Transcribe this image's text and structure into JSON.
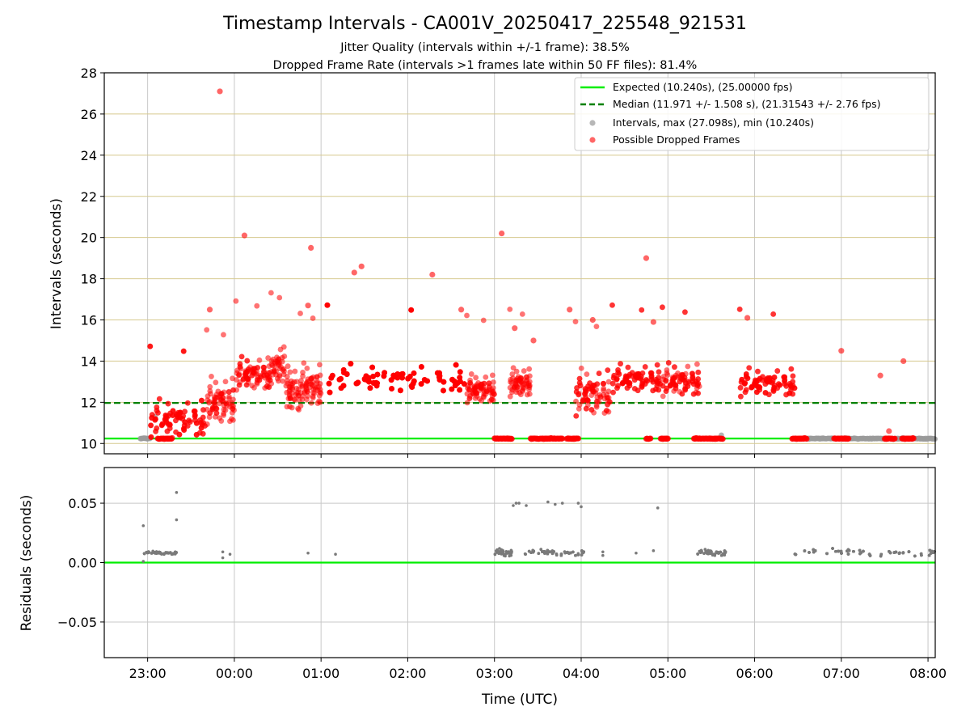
{
  "colors": {
    "expected": "#00ee00",
    "median": "#008000",
    "intervals": "#999999",
    "dropped": "#ff0000",
    "residuals": "#7a7a7a",
    "hgrid_top": "#d6c98f",
    "vgrid": "#c8c8c8"
  },
  "chart_data": [
    {
      "type": "scatter",
      "title": "Timestamp Intervals - CA001V_20250417_225548_921531",
      "subtitle_1": "Jitter Quality (intervals within +/-1 frame): 38.5%",
      "subtitle_2": "Dropped Frame Rate (intervals >1 frames late within 50 FF files): 81.4%",
      "xlabel": "",
      "ylabel": "Intervals (seconds)",
      "xlim": [
        "22:30",
        "08:05"
      ],
      "ylim": [
        9.5,
        28
      ],
      "yticks": [
        10,
        12,
        14,
        16,
        18,
        20,
        22,
        24,
        26,
        28
      ],
      "xticks": [
        "23:00",
        "00:00",
        "01:00",
        "02:00",
        "03:00",
        "04:00",
        "05:00",
        "06:00",
        "07:00",
        "08:00"
      ],
      "grid": "on",
      "legend_placement": "top-right",
      "legend": [
        "Expected (10.240s), (25.00000 fps)",
        "Median (11.971 +/- 1.508 s), (21.31543 +/- 2.76 fps)",
        "Intervals, max (27.098s), min (10.240s)",
        "Possible Dropped Frames"
      ],
      "expected_interval": 10.24,
      "median_interval": 11.971,
      "series": [
        {
          "name": "Intervals, max (27.098s), min (10.240s)",
          "segments": [
            [
              "22:55",
              "23:02"
            ],
            [
              "06:36",
              "08:05"
            ]
          ],
          "points": [
            {
              "x": "23:05",
              "y": 11.3
            },
            {
              "x": "05:37",
              "y": 10.4
            }
          ]
        },
        {
          "name": "Possible Dropped Frames",
          "clusters": [
            {
              "from": "23:00",
              "to": "23:40",
              "level": 11.0,
              "spread": 0.8
            },
            {
              "from": "23:40",
              "to": "00:00",
              "level": 11.8,
              "spread": 1.0
            },
            {
              "from": "00:00",
              "to": "00:25",
              "level": 13.2,
              "spread": 0.7
            },
            {
              "from": "00:25",
              "to": "00:35",
              "level": 13.6,
              "spread": 0.8
            },
            {
              "from": "00:35",
              "to": "00:45",
              "level": 12.3,
              "spread": 1.0
            },
            {
              "from": "00:45",
              "to": "01:00",
              "level": 12.6,
              "spread": 0.9
            },
            {
              "from": "01:00",
              "to": "02:40",
              "level": 13.0,
              "spread": 0.6
            },
            {
              "from": "02:40",
              "to": "03:00",
              "level": 12.5,
              "spread": 0.6
            },
            {
              "from": "03:10",
              "to": "03:25",
              "level": 12.8,
              "spread": 0.6
            },
            {
              "from": "03:55",
              "to": "04:20",
              "level": 12.2,
              "spread": 1.0
            },
            {
              "from": "04:20",
              "to": "04:55",
              "level": 13.0,
              "spread": 0.6
            },
            {
              "from": "04:55",
              "to": "05:22",
              "level": 12.9,
              "spread": 0.7
            },
            {
              "from": "05:48",
              "to": "06:28",
              "level": 12.8,
              "spread": 0.6
            }
          ],
          "baseline_runs": [
            [
              "23:07",
              "23:17"
            ],
            [
              "03:00",
              "03:12"
            ],
            [
              "03:25",
              "03:35"
            ],
            [
              "03:35",
              "03:47"
            ],
            [
              "03:50",
              "03:58"
            ],
            [
              "04:45",
              "04:48"
            ],
            [
              "04:55",
              "05:00"
            ],
            [
              "05:18",
              "05:38"
            ],
            [
              "06:26",
              "06:36"
            ],
            [
              "06:55",
              "07:05"
            ],
            [
              "07:30",
              "07:37"
            ],
            [
              "07:42",
              "07:50"
            ]
          ],
          "outliers": [
            {
              "x": "23:50",
              "y": 27.1
            },
            {
              "x": "00:07",
              "y": 20.1
            },
            {
              "x": "00:53",
              "y": 19.5
            },
            {
              "x": "01:23",
              "y": 18.3
            },
            {
              "x": "01:28",
              "y": 18.6
            },
            {
              "x": "02:17",
              "y": 18.2
            },
            {
              "x": "03:05",
              "y": 20.2
            },
            {
              "x": "04:45",
              "y": 19.0
            },
            {
              "x": "00:51",
              "y": 16.7
            },
            {
              "x": "05:55",
              "y": 16.1
            },
            {
              "x": "04:08",
              "y": 16.0
            },
            {
              "x": "03:52",
              "y": 16.5
            },
            {
              "x": "02:37",
              "y": 16.5
            },
            {
              "x": "23:43",
              "y": 16.5
            },
            {
              "x": "07:00",
              "y": 14.5
            },
            {
              "x": "07:27",
              "y": 13.3
            },
            {
              "x": "07:43",
              "y": 14.0
            },
            {
              "x": "07:33",
              "y": 10.6
            },
            {
              "x": "03:27",
              "y": 15.0
            },
            {
              "x": "03:14",
              "y": 15.6
            },
            {
              "x": "04:50",
              "y": 15.9
            }
          ]
        }
      ]
    },
    {
      "type": "scatter",
      "xlabel": "Time (UTC)",
      "ylabel": "Residuals (seconds)",
      "xlim": [
        "22:30",
        "08:05"
      ],
      "ylim": [
        -0.08,
        0.08
      ],
      "ytick_labels": [
        "0.05",
        "0.00",
        "−0.05"
      ],
      "ytick_values": [
        0.05,
        0.0,
        -0.05
      ],
      "xticks": [
        "23:00",
        "00:00",
        "01:00",
        "02:00",
        "03:00",
        "04:00",
        "05:00",
        "06:00",
        "07:00",
        "08:00"
      ],
      "grid": "on",
      "reference_line": 0.0,
      "series": [
        {
          "name": "",
          "clusters": [
            {
              "from": "22:57",
              "to": "23:20",
              "level": 0.008,
              "spread": 0.002
            },
            {
              "from": "03:00",
              "to": "03:12",
              "level": 0.008,
              "spread": 0.005
            },
            {
              "from": "03:20",
              "to": "04:02",
              "level": 0.008,
              "spread": 0.004
            },
            {
              "from": "05:20",
              "to": "05:40",
              "level": 0.008,
              "spread": 0.004
            },
            {
              "from": "06:25",
              "to": "08:05",
              "level": 0.008,
              "spread": 0.005
            }
          ],
          "outliers": [
            {
              "x": "22:57",
              "y": 0.031
            },
            {
              "x": "23:20",
              "y": 0.059
            },
            {
              "x": "23:20",
              "y": 0.036
            },
            {
              "x": "22:57",
              "y": 0.001
            },
            {
              "x": "03:13",
              "y": 0.048
            },
            {
              "x": "03:15",
              "y": 0.05
            },
            {
              "x": "03:17",
              "y": 0.05
            },
            {
              "x": "03:22",
              "y": 0.048
            },
            {
              "x": "03:37",
              "y": 0.051
            },
            {
              "x": "03:42",
              "y": 0.049
            },
            {
              "x": "03:47",
              "y": 0.05
            },
            {
              "x": "03:58",
              "y": 0.05
            },
            {
              "x": "04:00",
              "y": 0.047
            },
            {
              "x": "04:53",
              "y": 0.046
            },
            {
              "x": "23:52",
              "y": 0.009
            },
            {
              "x": "23:52",
              "y": 0.004
            },
            {
              "x": "23:57",
              "y": 0.007
            },
            {
              "x": "00:51",
              "y": 0.008
            },
            {
              "x": "01:10",
              "y": 0.007
            },
            {
              "x": "04:15",
              "y": 0.009
            },
            {
              "x": "04:15",
              "y": 0.006
            },
            {
              "x": "04:38",
              "y": 0.008
            },
            {
              "x": "04:50",
              "y": 0.01
            }
          ]
        }
      ]
    }
  ]
}
